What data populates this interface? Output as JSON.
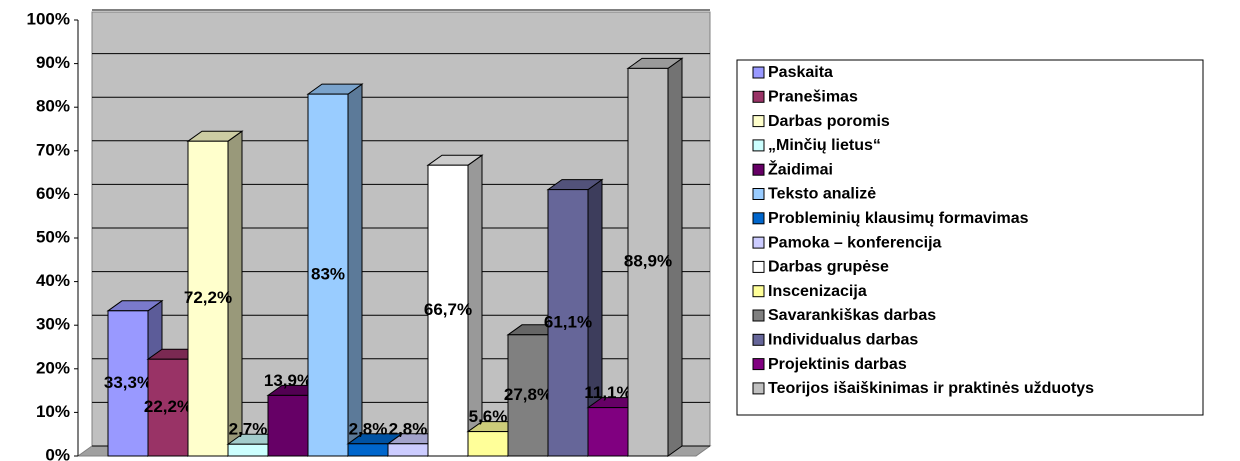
{
  "chart_data": {
    "type": "bar",
    "categories": [
      null
    ],
    "series": [
      {
        "name": "Paskaita",
        "color": "#9999ff",
        "values": [
          33.3
        ],
        "value_labels": [
          "33,3%"
        ]
      },
      {
        "name": "Pranešimas",
        "color": "#993366",
        "values": [
          22.2
        ],
        "value_labels": [
          "22,2%"
        ]
      },
      {
        "name": "Darbas poromis",
        "color": "#ffffcc",
        "values": [
          72.2
        ],
        "value_labels": [
          "72,2%"
        ]
      },
      {
        "name": "„Minčių lietus“",
        "color": "#ccffff",
        "values": [
          2.7
        ],
        "value_labels": [
          "2,7%"
        ]
      },
      {
        "name": "Žaidimai",
        "color": "#660066",
        "values": [
          13.9
        ],
        "value_labels": [
          "13,9%"
        ]
      },
      {
        "name": "Teksto analizė",
        "color": "#99ccff",
        "values": [
          83
        ],
        "value_labels": [
          "83%"
        ]
      },
      {
        "name": "Probleminių klausimų formavimas",
        "color": "#0066cc",
        "values": [
          2.8
        ],
        "value_labels": [
          "2,8%"
        ]
      },
      {
        "name": "Pamoka – konferencija",
        "color": "#ccccff",
        "values": [
          2.8
        ],
        "value_labels": [
          "2,8%"
        ]
      },
      {
        "name": "Darbas grupėse",
        "color": "#ffffff",
        "values": [
          66.7
        ],
        "value_labels": [
          "66,7%"
        ]
      },
      {
        "name": "Inscenizacija",
        "color": "#ffff99",
        "values": [
          5.6
        ],
        "value_labels": [
          "5,6%"
        ]
      },
      {
        "name": "Savarankiškas darbas",
        "color": "#808080",
        "values": [
          27.8
        ],
        "value_labels": [
          "27,8%"
        ]
      },
      {
        "name": "Individualus darbas",
        "color": "#666699",
        "values": [
          61.1
        ],
        "value_labels": [
          "61,1%"
        ]
      },
      {
        "name": "Projektinis darbas",
        "color": "#800080",
        "values": [
          11.1
        ],
        "value_labels": [
          "11,1%"
        ]
      },
      {
        "name": "Teorijos išaiškinimas ir praktinės užduotys",
        "color": "#c0c0c0",
        "values": [
          88.9
        ],
        "value_labels": [
          "88,9%"
        ]
      }
    ],
    "ylim": [
      0,
      100
    ],
    "yticks": [
      {
        "value": 0,
        "label": "0%"
      },
      {
        "value": 10,
        "label": "10%"
      },
      {
        "value": 20,
        "label": "20%"
      },
      {
        "value": 30,
        "label": "30%"
      },
      {
        "value": 40,
        "label": "40%"
      },
      {
        "value": 50,
        "label": "50%"
      },
      {
        "value": 60,
        "label": "60%"
      },
      {
        "value": 70,
        "label": "70%"
      },
      {
        "value": 80,
        "label": "80%"
      },
      {
        "value": 90,
        "label": "90%"
      },
      {
        "value": 100,
        "label": "100%"
      }
    ],
    "grid": true,
    "legend": "right"
  }
}
